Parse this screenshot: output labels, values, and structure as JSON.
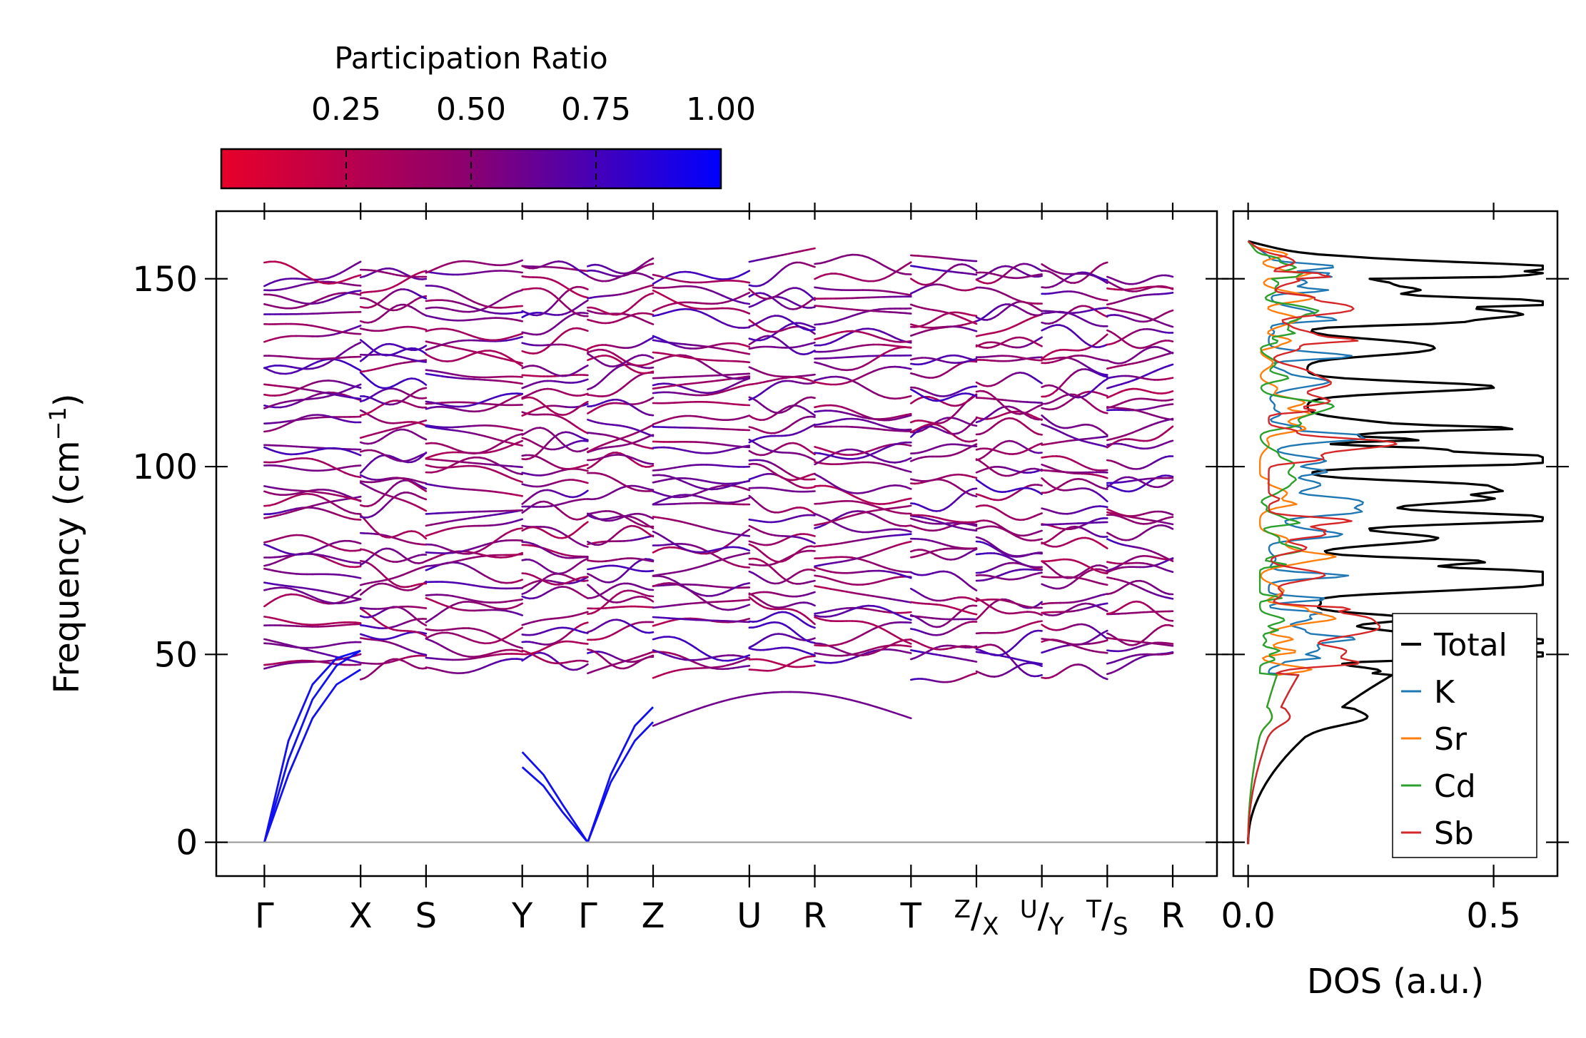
{
  "chart_data": [
    {
      "type": "line",
      "title": "",
      "xlabel": "",
      "ylabel": "Frequency (cm",
      "ylabel_sup": "−1",
      "ylabel_close": ")",
      "ylim": [
        -9,
        168
      ],
      "yticks": [
        0,
        50,
        100,
        150
      ],
      "ytick_labels": [
        "0",
        "50",
        "100",
        "150"
      ],
      "high_symmetry_points": [
        {
          "pos": 0.0,
          "label": "Γ"
        },
        {
          "pos": 1.0,
          "label": "X"
        },
        {
          "pos": 1.68,
          "label": "S"
        },
        {
          "pos": 2.68,
          "label": "Y"
        },
        {
          "pos": 3.36,
          "label": "Γ"
        },
        {
          "pos": 4.04,
          "label": "Z"
        },
        {
          "pos": 5.04,
          "label": "U"
        },
        {
          "pos": 5.72,
          "label": "R"
        },
        {
          "pos": 6.72,
          "label": "T"
        },
        {
          "pos": 7.4,
          "label": "Z",
          "sub": "X"
        },
        {
          "pos": 8.08,
          "label": "U",
          "sub": "Y"
        },
        {
          "pos": 8.76,
          "label": "T",
          "sub": "S"
        },
        {
          "pos": 9.44,
          "label": "R"
        }
      ],
      "xlim": [
        -0.5,
        9.9
      ],
      "acoustic_branches": [
        {
          "path": "Γ-X",
          "x": [
            0,
            0.25,
            0.5,
            0.75,
            1.0
          ],
          "y": [
            0,
            22,
            38,
            47,
            51
          ]
        },
        {
          "path": "Γ-X",
          "x": [
            0,
            0.25,
            0.5,
            0.75,
            1.0
          ],
          "y": [
            0,
            18,
            33,
            42,
            46
          ]
        },
        {
          "path": "Γ-X",
          "x": [
            0,
            0.25,
            0.5,
            0.75,
            1.0
          ],
          "y": [
            0,
            27,
            42,
            49,
            51
          ]
        },
        {
          "path": "Y-Γ",
          "x": [
            2.68,
            2.9,
            3.1,
            3.36
          ],
          "y": [
            20,
            15,
            8,
            0
          ]
        },
        {
          "path": "Y-Γ",
          "x": [
            2.68,
            2.9,
            3.1,
            3.36
          ],
          "y": [
            24,
            18,
            10,
            0
          ]
        },
        {
          "path": "Γ-Z",
          "x": [
            3.36,
            3.6,
            3.85,
            4.04
          ],
          "y": [
            0,
            18,
            31,
            36
          ]
        },
        {
          "path": "Γ-Z",
          "x": [
            3.36,
            3.6,
            3.85,
            4.04
          ],
          "y": [
            0,
            16,
            27,
            32
          ]
        }
      ],
      "colorbar": {
        "title": "Participation Ratio",
        "range": [
          0.0,
          1.0
        ],
        "ticks": [
          0.25,
          0.5,
          0.75,
          1.0
        ],
        "tick_labels": [
          "0.25",
          "0.50",
          "0.75",
          "1.00"
        ],
        "low_color": "#e8002a",
        "mid_color": "#8a0070",
        "high_color": "#0000ff"
      }
    },
    {
      "type": "line",
      "title": "",
      "xlabel": "DOS (a.u.)",
      "ylabel": "",
      "xlim": [
        -0.03,
        0.63
      ],
      "ylim": [
        -9,
        168
      ],
      "xticks": [
        0.0,
        0.5
      ],
      "xtick_labels": [
        "0.0",
        "0.5"
      ],
      "legend_position": "lower-right",
      "series": [
        {
          "name": "Total",
          "color": "#000000"
        },
        {
          "name": "K",
          "color": "#1f77b4"
        },
        {
          "name": "Sr",
          "color": "#ff7f0e"
        },
        {
          "name": "Cd",
          "color": "#2ca02c"
        },
        {
          "name": "Sb",
          "color": "#d62728"
        }
      ]
    }
  ]
}
